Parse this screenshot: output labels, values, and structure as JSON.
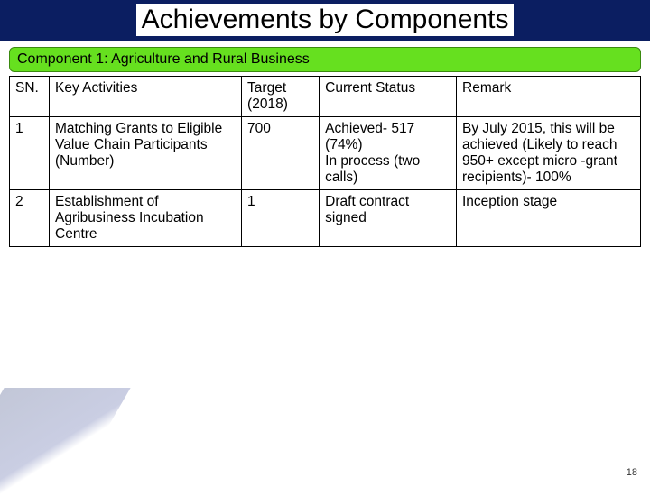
{
  "title": "Achievements by Components",
  "banner": "Component 1: Agriculture and Rural Business",
  "table": {
    "headers": {
      "sn": "SN.",
      "key": "Key Activities",
      "target": "Target (2018)",
      "status": "Current Status",
      "remark": "Remark"
    },
    "rows": [
      {
        "sn": "1",
        "key": "Matching Grants to Eligible Value Chain Participants (Number)",
        "target": "700",
        "status": "Achieved- 517 (74%)\nIn process (two calls)",
        "remark": "By July 2015, this will be achieved (Likely to reach 950+ except micro -grant recipients)- 100%"
      },
      {
        "sn": "2",
        "key": "Establishment of Agribusiness Incubation Centre",
        "target": "1",
        "status": "Draft contract signed",
        "remark": "Inception stage"
      }
    ]
  },
  "pageNumber": "18",
  "colors": {
    "titleBar": "#0b1e61",
    "banner": "#66e01f",
    "border": "#000000"
  }
}
